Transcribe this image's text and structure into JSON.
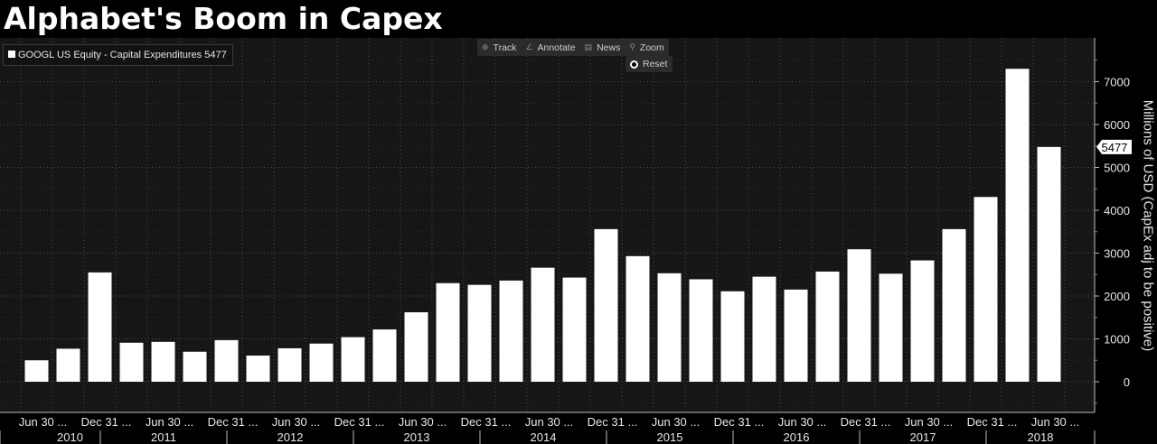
{
  "title": "Alphabet's Boom in Capex",
  "legend": {
    "label": "GOOGL US Equity - Capital Expenditures 5477"
  },
  "toolbar": {
    "items": [
      {
        "label": "Track",
        "icon": "crosshair-icon"
      },
      {
        "label": "Annotate",
        "icon": "pencil-icon"
      },
      {
        "label": "News",
        "icon": "news-icon"
      },
      {
        "label": "Zoom",
        "icon": "magnifier-icon"
      }
    ],
    "reset_label": "Reset"
  },
  "colors": {
    "background": "#000000",
    "plot": "#161616",
    "bar": "#ffffff",
    "grid": "#4a4a4a",
    "text": "#e6e6e6"
  },
  "chart_data": {
    "type": "bar",
    "ylabel": "Millions of USD (CapEx adj to be positive)",
    "ylim": [
      -1000,
      8000
    ],
    "yticks": [
      0,
      1000,
      2000,
      3000,
      4000,
      5000,
      6000,
      7000
    ],
    "last_value_label": "5477",
    "x_tick_labels": [
      "Jun 30 ...",
      "Dec 31 ...",
      "Jun 30 ...",
      "Dec 31 ...",
      "Jun 30 ...",
      "Dec 31 ...",
      "Jun 30 ...",
      "Dec 31 ...",
      "Jun 30 ...",
      "Dec 31 ...",
      "Jun 30 ...",
      "Dec 31 ...",
      "Jun 30 ...",
      "Dec 31 ...",
      "Jun 30 ...",
      "Dec 31 ...",
      "Jun 30 ..."
    ],
    "year_labels": [
      "2010",
      "2011",
      "2012",
      "2013",
      "2014",
      "2015",
      "2016",
      "2017",
      "2018"
    ],
    "values": [
      500,
      770,
      2550,
      910,
      930,
      700,
      970,
      610,
      780,
      890,
      1040,
      1220,
      1620,
      2300,
      2260,
      2360,
      2660,
      2430,
      3560,
      2930,
      2530,
      2390,
      2110,
      2450,
      2150,
      2570,
      3090,
      2520,
      2830,
      3560,
      4310,
      7300,
      5477
    ]
  }
}
